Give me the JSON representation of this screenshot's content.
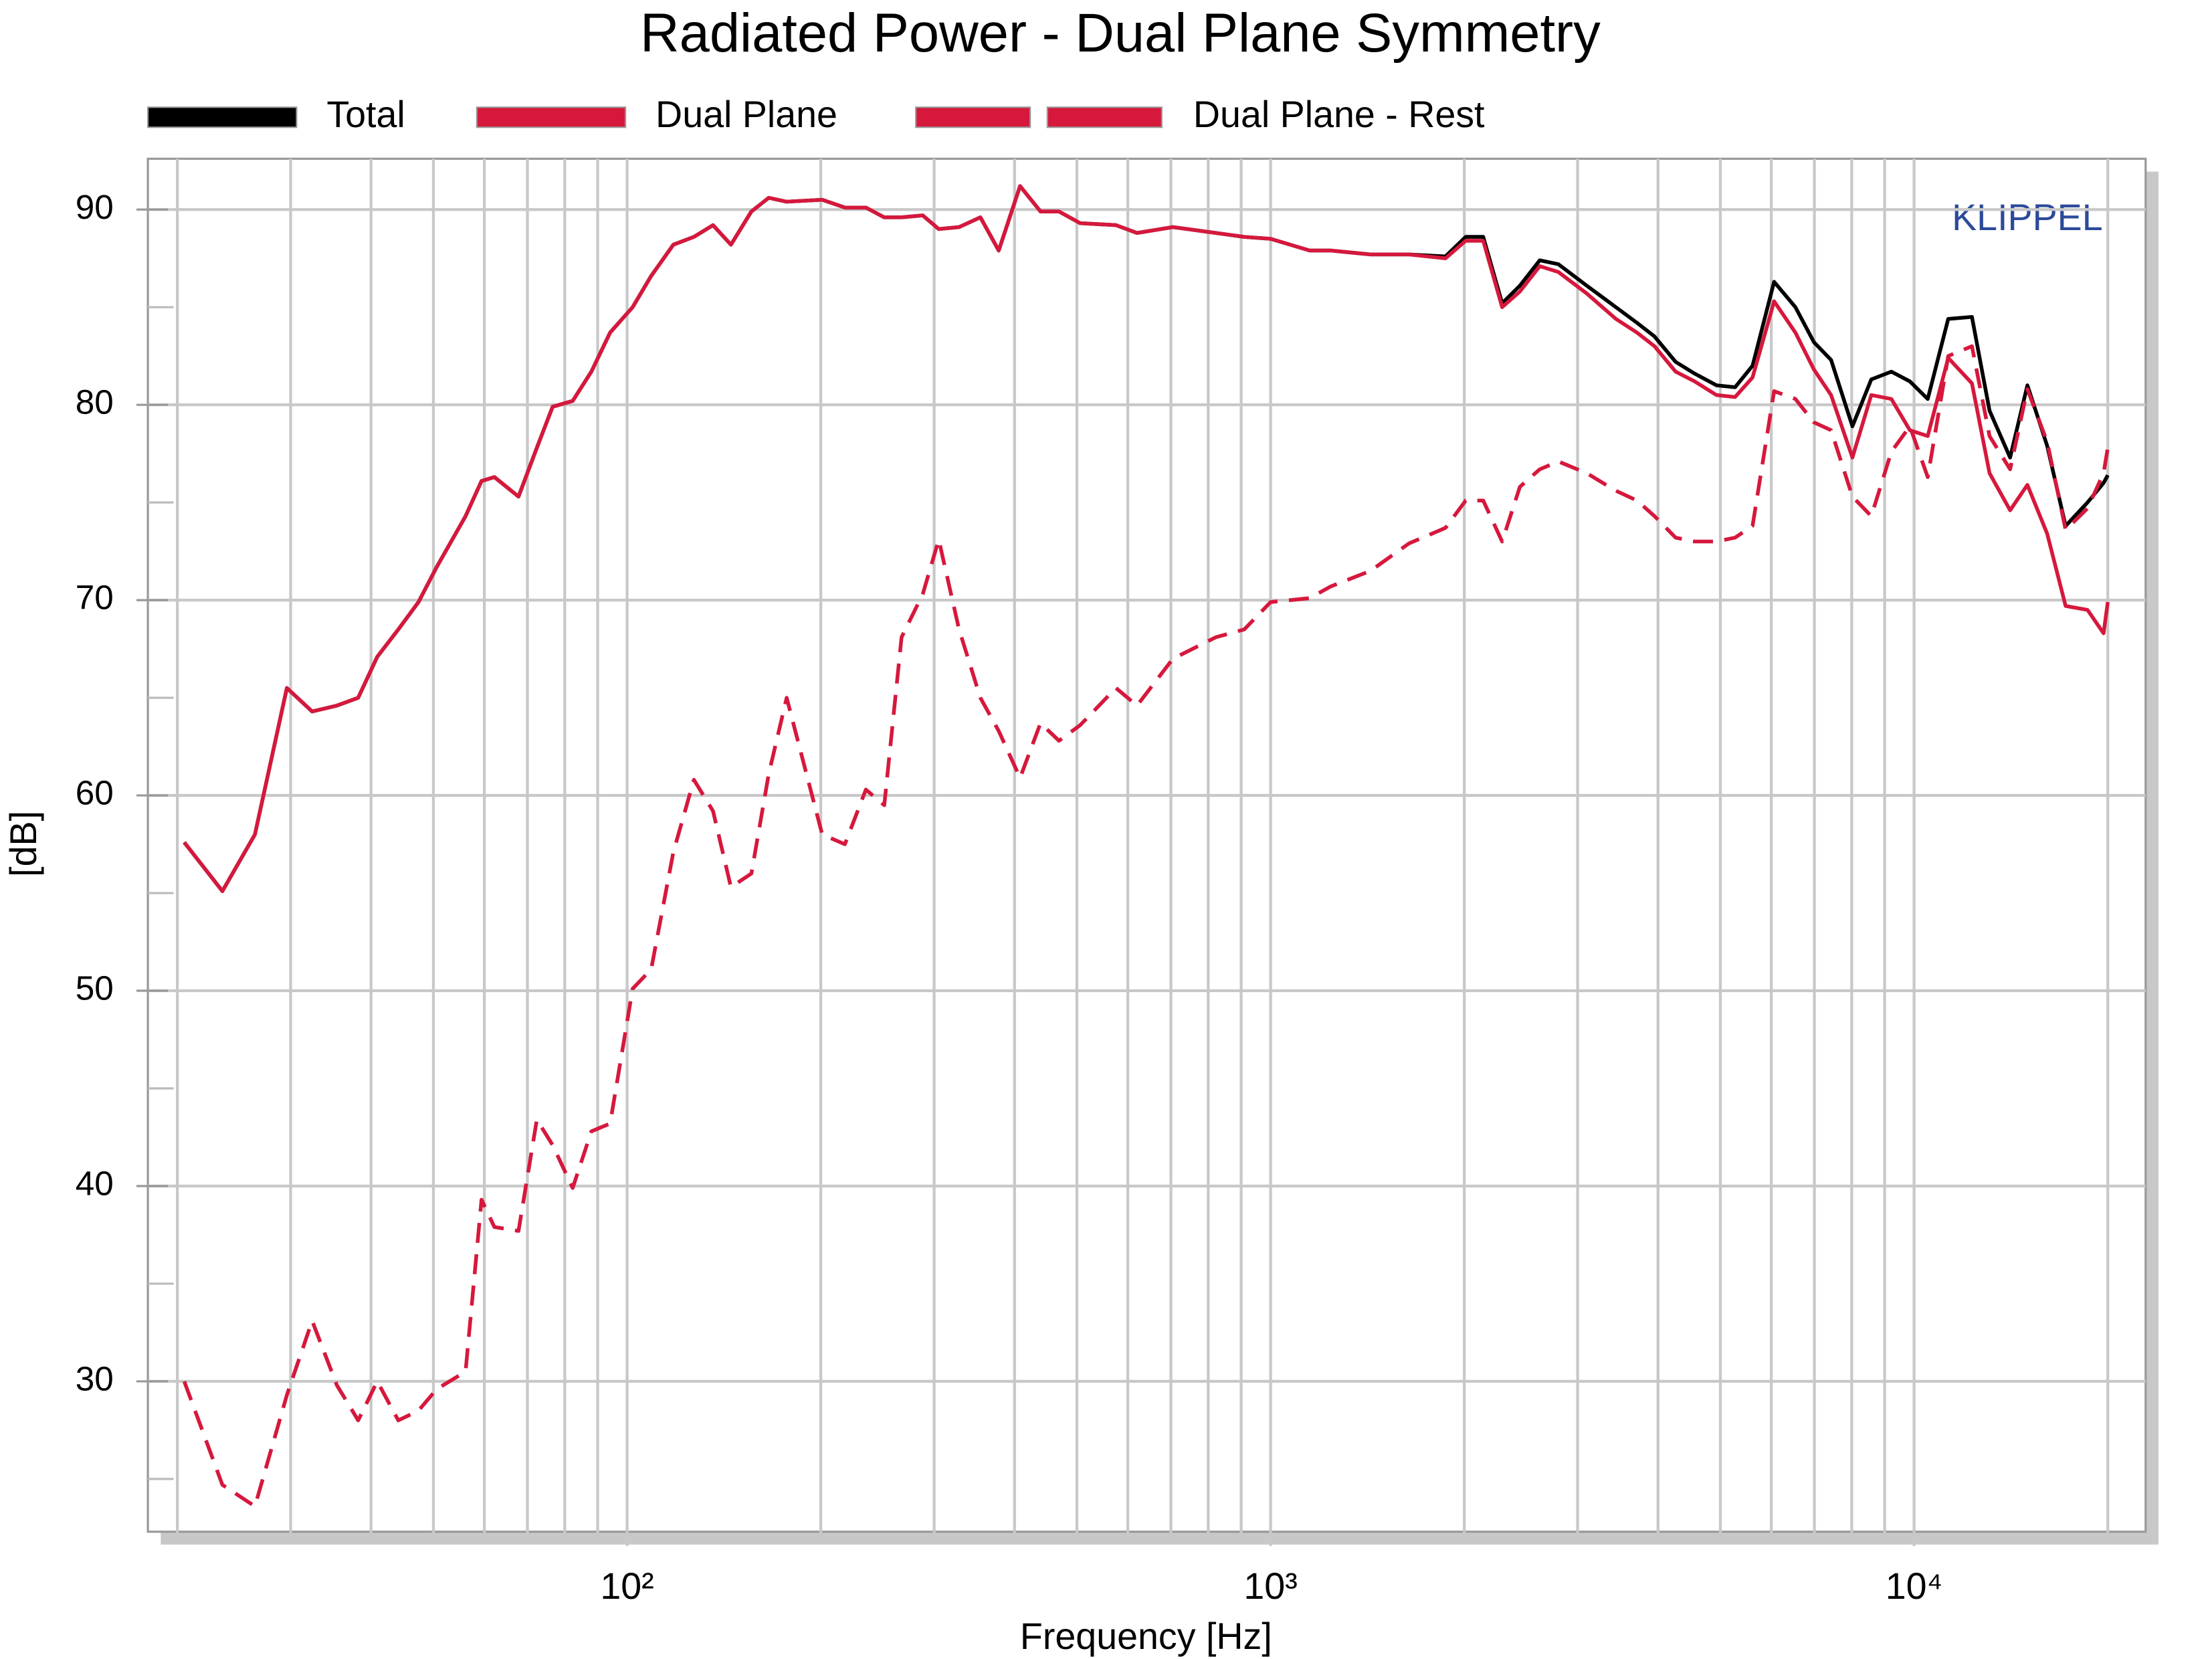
{
  "chart_data": {
    "type": "line",
    "title": "Radiated Power - Dual Plane Symmetry",
    "xlabel": "Frequency [Hz]",
    "ylabel": "[dB]",
    "annotation": "KLIPPEL",
    "xscale": "log",
    "grid": true,
    "legend": "top",
    "xlim": [
      18,
      22900
    ],
    "ylim": [
      22.3,
      92.6
    ],
    "xticks": [
      {
        "value": 100,
        "label": "10²"
      },
      {
        "value": 1000,
        "label": "10³"
      },
      {
        "value": 10000,
        "label": "10⁴"
      }
    ],
    "xminor": [
      20,
      30,
      40,
      50,
      60,
      70,
      80,
      90,
      200,
      300,
      400,
      500,
      600,
      700,
      800,
      900,
      2000,
      3000,
      4000,
      5000,
      6000,
      7000,
      8000,
      9000,
      20000
    ],
    "yticks": [
      30,
      40,
      50,
      60,
      70,
      80,
      90
    ],
    "yminor": [
      25,
      35,
      45,
      55,
      65,
      75,
      85
    ],
    "x": [
      20.5,
      23.5,
      26.4,
      29.6,
      32.4,
      35.4,
      38.2,
      40.9,
      44.1,
      47.4,
      50.6,
      56.1,
      59.4,
      62.2,
      67.8,
      72.4,
      76.6,
      82.3,
      88,
      94.1,
      102,
      109,
      118,
      127,
      136,
      145,
      156,
      166,
      177,
      201,
      218,
      235,
      251,
      267,
      288,
      305,
      328,
      354,
      378,
      408,
      439,
      469,
      506,
      575,
      620,
      705,
      822,
      910,
      1000,
      1150,
      1240,
      1430,
      1640,
      1870,
      2010,
      2140,
      2290,
      2440,
      2620,
      2800,
      3100,
      3440,
      3710,
      3950,
      4260,
      4560,
      4930,
      5270,
      5610,
      6060,
      6540,
      6990,
      7430,
      8020,
      8580,
      9220,
      9850,
      10500,
      11300,
      12300,
      13100,
      14100,
      15000,
      16100,
      17200,
      18600,
      19700,
      20000
    ],
    "series": [
      {
        "name": "Total",
        "color": "#000000",
        "dashed": false,
        "values": [
          57.6,
          55.1,
          58.0,
          65.5,
          64.3,
          64.6,
          65.0,
          67.1,
          68.5,
          69.9,
          71.7,
          74.3,
          76.1,
          76.3,
          75.3,
          77.8,
          79.9,
          80.2,
          81.7,
          83.7,
          85.0,
          86.6,
          88.2,
          88.6,
          89.2,
          88.2,
          89.9,
          90.6,
          90.4,
          90.5,
          90.1,
          90.1,
          89.6,
          89.6,
          89.7,
          89.0,
          89.1,
          89.6,
          87.9,
          91.2,
          89.9,
          89.9,
          89.3,
          89.2,
          88.8,
          89.1,
          88.8,
          88.6,
          88.5,
          87.9,
          87.9,
          87.7,
          87.7,
          87.6,
          88.6,
          88.6,
          85.2,
          86.1,
          87.4,
          87.2,
          86.1,
          85.0,
          84.2,
          83.5,
          82.2,
          81.6,
          81.0,
          80.9,
          82.0,
          86.3,
          85.0,
          83.2,
          82.3,
          78.9,
          81.3,
          81.7,
          81.2,
          80.3,
          84.4,
          84.5,
          79.7,
          77.3,
          81.0,
          77.9,
          73.8,
          75.0,
          76.0,
          76.4
        ]
      },
      {
        "name": "Dual Plane",
        "color": "#d6183d",
        "dashed": false,
        "values": [
          57.6,
          55.1,
          58.0,
          65.5,
          64.3,
          64.6,
          65.0,
          67.1,
          68.5,
          69.9,
          71.7,
          74.3,
          76.1,
          76.3,
          75.3,
          77.8,
          79.9,
          80.2,
          81.7,
          83.7,
          85.0,
          86.6,
          88.2,
          88.6,
          89.2,
          88.2,
          89.9,
          90.6,
          90.4,
          90.5,
          90.1,
          90.1,
          89.6,
          89.6,
          89.7,
          89.0,
          89.1,
          89.6,
          87.9,
          91.2,
          89.9,
          89.9,
          89.3,
          89.2,
          88.8,
          89.1,
          88.8,
          88.6,
          88.5,
          87.9,
          87.9,
          87.7,
          87.7,
          87.5,
          88.4,
          88.4,
          85.0,
          85.8,
          87.1,
          86.8,
          85.7,
          84.4,
          83.7,
          83.0,
          81.7,
          81.2,
          80.5,
          80.4,
          81.4,
          85.3,
          83.7,
          81.8,
          80.5,
          77.3,
          80.5,
          80.3,
          78.7,
          78.4,
          82.4,
          81.1,
          76.5,
          74.6,
          75.9,
          73.4,
          69.7,
          69.5,
          68.3,
          69.9
        ]
      },
      {
        "name": "Dual Plane - Rest",
        "color": "#d6183d",
        "dashed": true,
        "values": [
          30.0,
          24.7,
          23.6,
          29.3,
          33.1,
          29.8,
          28.0,
          30.0,
          28.0,
          28.5,
          29.6,
          30.5,
          39.3,
          37.9,
          37.7,
          43.4,
          42.1,
          39.9,
          42.8,
          43.2,
          50.1,
          51.1,
          57.1,
          60.8,
          59.2,
          55.3,
          56.0,
          61.1,
          65.0,
          58.0,
          57.5,
          60.3,
          59.5,
          68.1,
          70.3,
          73.1,
          68.5,
          65.0,
          63.3,
          60.9,
          63.7,
          62.8,
          63.6,
          65.5,
          64.6,
          67.0,
          68.1,
          68.5,
          69.9,
          70.1,
          70.7,
          71.5,
          72.9,
          73.7,
          75.1,
          75.1,
          73.0,
          75.8,
          76.7,
          77.1,
          76.5,
          75.6,
          75.1,
          74.3,
          73.2,
          73.0,
          73.0,
          73.2,
          73.8,
          80.7,
          80.3,
          79.1,
          78.7,
          75.3,
          74.3,
          77.6,
          78.9,
          76.3,
          82.5,
          83.0,
          78.4,
          76.7,
          80.8,
          78.1,
          73.6,
          74.7,
          76.5,
          77.8
        ]
      }
    ]
  }
}
